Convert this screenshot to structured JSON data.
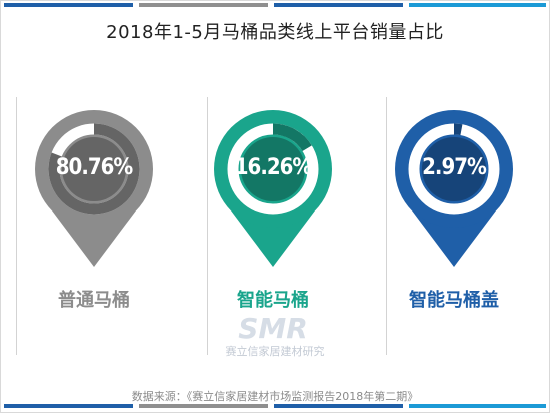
{
  "title": "2018年1-5月马桶品类线上平台销量占比",
  "chart_data": {
    "type": "pie",
    "title": "2018年1-5月马桶品类线上平台销量占比",
    "categories": [
      "普通马桶",
      "智能马桶",
      "智能马桶盖"
    ],
    "values": [
      80.76,
      16.26,
      2.97
    ],
    "labels": [
      "80.76%",
      "16.26%",
      "2.97%"
    ],
    "colors": [
      "#8c8c8c",
      "#1aa58c",
      "#1f5fa8"
    ],
    "label_colors": [
      "#8c8c8c",
      "#1aa58c",
      "#1f5fa8"
    ]
  },
  "watermark": {
    "logo": "SMR",
    "text": "赛立信家居建材研究"
  },
  "source": "数据来源：《赛立信家居建材市场监测报告2018年第二期》"
}
